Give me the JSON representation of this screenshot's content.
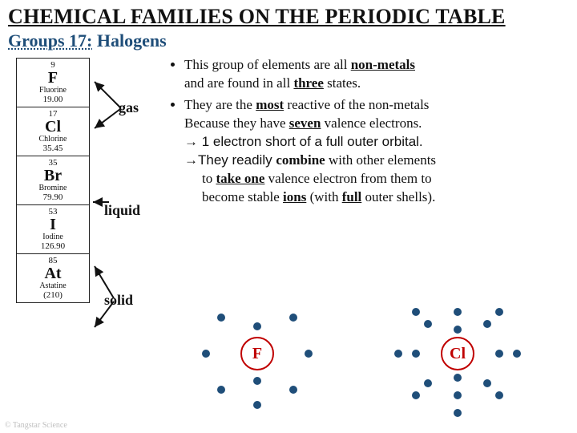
{
  "title": "CHEMICAL FAMILIES ON THE PERIODIC TABLE",
  "subtitle": {
    "groups": "Groups 17:",
    "name": "Halogens"
  },
  "credit": "© Tangstar Science",
  "colors": {
    "title_color": "#111111",
    "subtitle_color": "#1f4e79",
    "electron_color": "#1f4e79",
    "nucleus_border": "#c00000",
    "nucleus_text": "#c00000",
    "background": "#ffffff"
  },
  "periodic_column": [
    {
      "at": "9",
      "sym": "F",
      "name": "Fluorine",
      "mass": "19.00"
    },
    {
      "at": "17",
      "sym": "Cl",
      "name": "Chlorine",
      "mass": "35.45"
    },
    {
      "at": "35",
      "sym": "Br",
      "name": "Bromine",
      "mass": "79.90"
    },
    {
      "at": "53",
      "sym": "I",
      "name": "Iodine",
      "mass": "126.90"
    },
    {
      "at": "85",
      "sym": "At",
      "name": "Astatine",
      "mass": "(210)"
    }
  ],
  "state_labels": {
    "gas": "gas",
    "liquid": "liquid",
    "solid": "solid"
  },
  "bullets": {
    "l1a": "This group of elements are all ",
    "l1b": "non-metals",
    "l2a": "and are found in all ",
    "l2b": "three",
    "l2c": " states.",
    "l3a": "They are the ",
    "l3b": "most",
    "l3c": " reactive of the non-metals",
    "l4a": "Because they have ",
    "l4b": "seven",
    "l4c": " valence electrons.",
    "l5": "→ 1 electron short of a full outer orbital.",
    "l6a": "→They readily ",
    "l6b": "combine",
    "l6c": " with other elements",
    "l7a": "to ",
    "l7b": "take one",
    "l7c": " valence electron from them to",
    "l8a": "become stable ",
    "l8b": "ions",
    "l8c": " (with ",
    "l8d": "full",
    "l8e": " outer shells)."
  },
  "atoms": {
    "F": {
      "label": "F",
      "shells": [
        2,
        7
      ]
    },
    "Cl": {
      "label": "Cl",
      "shells": [
        2,
        8,
        7
      ]
    }
  }
}
